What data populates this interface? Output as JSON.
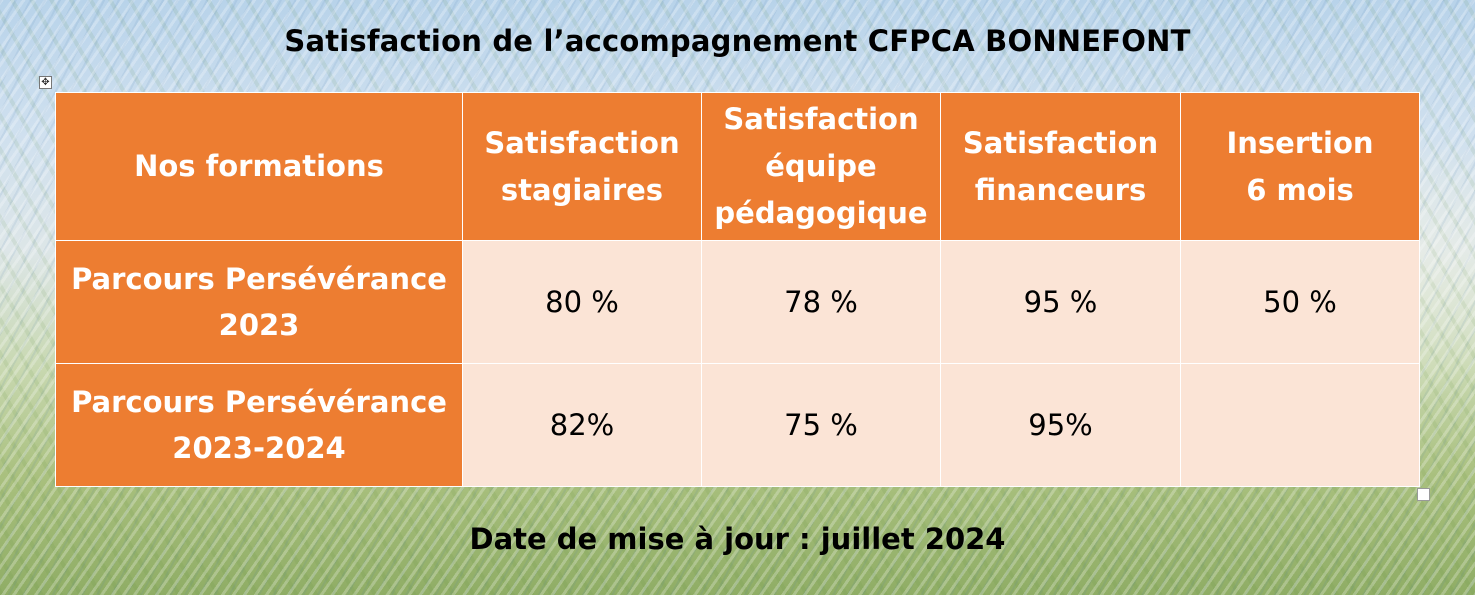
{
  "title": "Satisfaction de l’accompagnement CFPCA BONNEFONT",
  "table": {
    "headers": [
      {
        "line1": "Nos formations",
        "line2": ""
      },
      {
        "line1": "Satisfaction",
        "line2": "stagiaires"
      },
      {
        "line1": "Satisfaction",
        "line2": "équipe",
        "line3": "pédagogique"
      },
      {
        "line1": "Satisfaction",
        "line2": "financeurs"
      },
      {
        "line1": "Insertion",
        "line2": "6 mois"
      }
    ],
    "rows": [
      {
        "label_line1": "Parcours Persévérance",
        "label_line2": "2023",
        "values": [
          "80 %",
          "78 %",
          "95 %",
          "50 %"
        ]
      },
      {
        "label_line1": "Parcours Persévérance",
        "label_line2": "2023-2024",
        "values": [
          "82%",
          "75 %",
          "95%",
          ""
        ]
      }
    ]
  },
  "footer": "Date de mise à jour : juillet 2024",
  "colors": {
    "header_bg": "#ed7d31",
    "cell_bg": "#fbe4d6",
    "header_text": "#ffffff"
  },
  "icons": {
    "move_handle": "move-cross-icon",
    "resize_handle": "resize-square-icon"
  }
}
